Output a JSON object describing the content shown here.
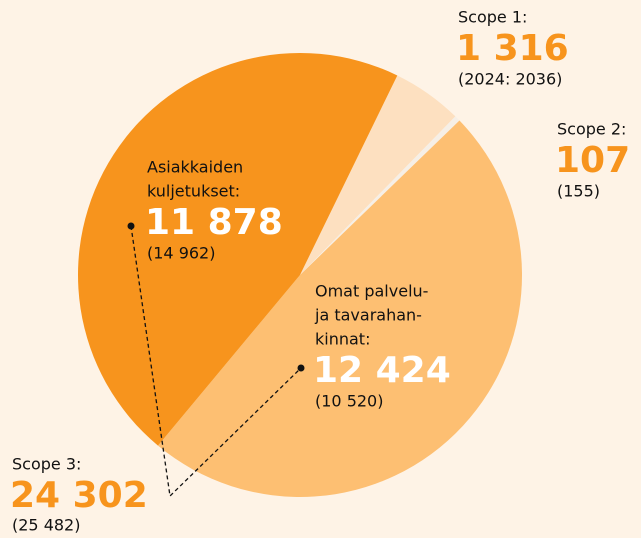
{
  "chart_data": {
    "type": "pie",
    "start_angle": 26,
    "categories": [
      [
        "Scope 1:"
      ],
      [
        "Scope 2:"
      ],
      [
        "Omat palvelu-",
        "ja tavarahan-",
        "kinnat:"
      ],
      [
        "Asiakkaiden",
        "kuljetukset:"
      ]
    ],
    "values": [
      1316,
      107,
      12424,
      11878
    ],
    "value_labels": [
      "1 316",
      "107",
      "12 424",
      "11 878"
    ],
    "previous_labels": [
      "(2024: 2036)",
      "(155)",
      "(10 520)",
      "(14 962)"
    ],
    "colors": [
      "#fde0c0",
      "#f6efe6",
      "#fdbf72",
      "#f7941d"
    ],
    "value_label_colors": [
      "#f7941d",
      "#f7941d",
      "#ffffff",
      "#ffffff"
    ],
    "scope3": {
      "label": "Scope 3:",
      "value": 24302,
      "value_label": "24 302",
      "previous_label": "(25 482)",
      "color": "#f7941d"
    }
  }
}
